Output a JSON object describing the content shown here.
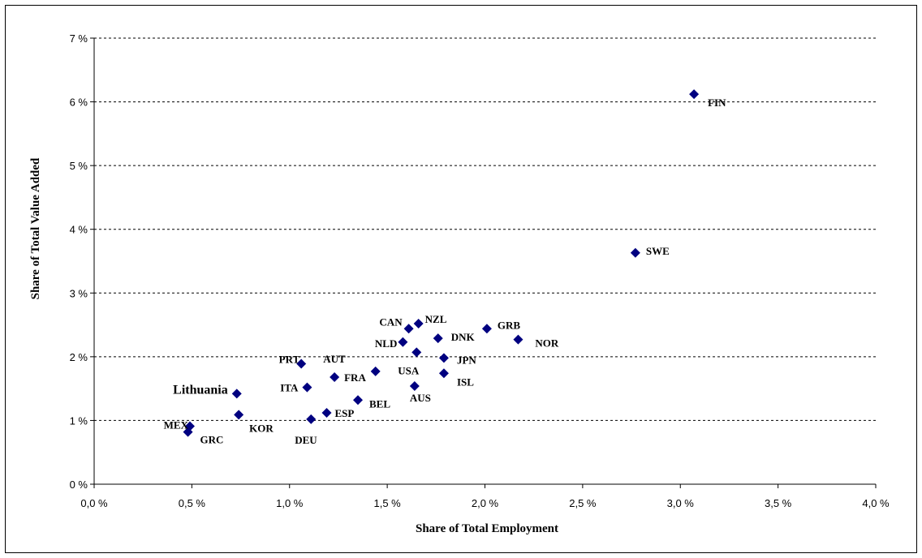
{
  "chart_data": {
    "type": "scatter",
    "title": "",
    "xlabel": "Share of Total Employment",
    "ylabel": "Share of Total Value Added",
    "xlim": [
      0,
      4
    ],
    "ylim": [
      0,
      7
    ],
    "x_unit": "%",
    "y_unit": "%",
    "grid": "horizontal dashed",
    "legend": "none",
    "marker": "diamond",
    "marker_color": "#000080",
    "x_tick_labels": [
      "0,0 %",
      "0,5 %",
      "1,0 %",
      "1,5 %",
      "2,0 %",
      "2,5 %",
      "3,0 %",
      "3,5 %",
      "4,0 %"
    ],
    "y_tick_labels": [
      "0 %",
      "1 %",
      "2 %",
      "3 %",
      "4 %",
      "5 %",
      "6 %",
      "7 %"
    ],
    "points": [
      {
        "label": "FIN",
        "x": 3.07,
        "y": 6.12
      },
      {
        "label": "SWE",
        "x": 2.77,
        "y": 3.63
      },
      {
        "label": "GRB",
        "x": 2.01,
        "y": 2.44
      },
      {
        "label": "NOR",
        "x": 2.17,
        "y": 2.27
      },
      {
        "label": "CAN",
        "x": 1.61,
        "y": 2.44
      },
      {
        "label": "NZL",
        "x": 1.66,
        "y": 2.52
      },
      {
        "label": "DNK",
        "x": 1.76,
        "y": 2.29
      },
      {
        "label": "NLD",
        "x": 1.58,
        "y": 2.23
      },
      {
        "label": "USA",
        "x": 1.65,
        "y": 2.07
      },
      {
        "label": "JPN",
        "x": 1.79,
        "y": 1.98
      },
      {
        "label": "ISL",
        "x": 1.79,
        "y": 1.74
      },
      {
        "label": "AUS",
        "x": 1.64,
        "y": 1.54
      },
      {
        "label": "PRT",
        "x": 1.06,
        "y": 1.89
      },
      {
        "label": "AUT",
        "x": 1.44,
        "y": 1.77
      },
      {
        "label": "FRA",
        "x": 1.23,
        "y": 1.68
      },
      {
        "label": "ITA",
        "x": 1.09,
        "y": 1.52
      },
      {
        "label": "BEL",
        "x": 1.35,
        "y": 1.32
      },
      {
        "label": "ESP",
        "x": 1.19,
        "y": 1.12
      },
      {
        "label": "DEU",
        "x": 1.11,
        "y": 1.02
      },
      {
        "label": "Lithuania",
        "x": 0.73,
        "y": 1.42
      },
      {
        "label": "KOR",
        "x": 0.74,
        "y": 1.09
      },
      {
        "label": "MEX",
        "x": 0.49,
        "y": 0.91
      },
      {
        "label": "GRC",
        "x": 0.48,
        "y": 0.82
      }
    ]
  }
}
